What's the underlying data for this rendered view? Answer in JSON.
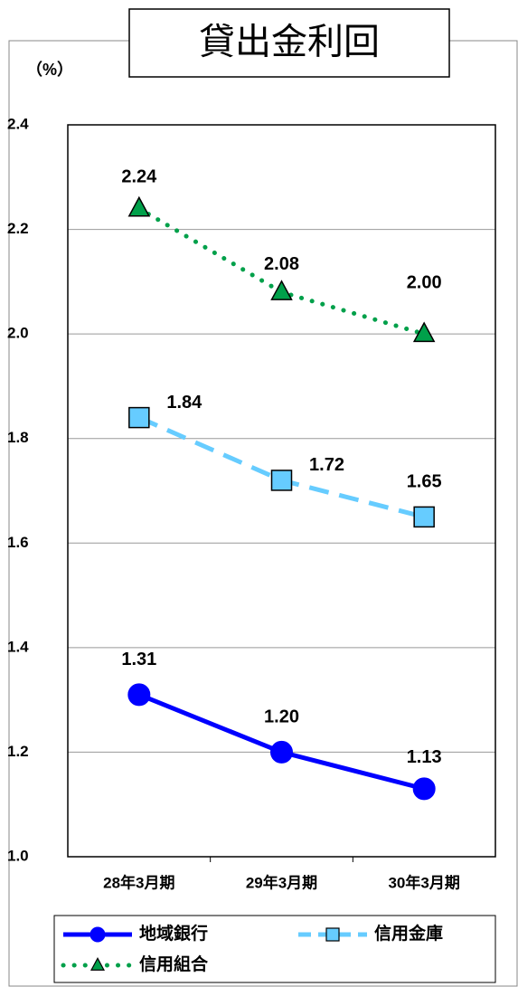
{
  "chart_data": {
    "type": "line",
    "title": "貸出金利回",
    "ylabel": "（%）",
    "categories": [
      "28年3月期",
      "29年3月期",
      "30年3月期"
    ],
    "series": [
      {
        "name": "地域銀行",
        "color": "#0000ff",
        "values": [
          1.31,
          1.2,
          1.13
        ],
        "value_labels": [
          "1.31",
          "1.20",
          "1.13"
        ]
      },
      {
        "name": "信用金庫",
        "color": "#66ccff",
        "values": [
          1.84,
          1.72,
          1.65
        ],
        "value_labels": [
          "1.84",
          "1.72",
          "1.65"
        ]
      },
      {
        "name": "信用組合",
        "color": "#00a04a",
        "values": [
          2.24,
          2.08,
          2.0
        ],
        "value_labels": [
          "2.24",
          "2.08",
          "2.00"
        ]
      }
    ],
    "ylim": [
      1,
      2.4
    ],
    "yticks": [
      {
        "value": 1,
        "label": "1.0"
      },
      1.2,
      1.4,
      1.6,
      1.8,
      {
        "value": 2,
        "label": "2.0"
      },
      2.2,
      2.4
    ],
    "grid": true
  }
}
